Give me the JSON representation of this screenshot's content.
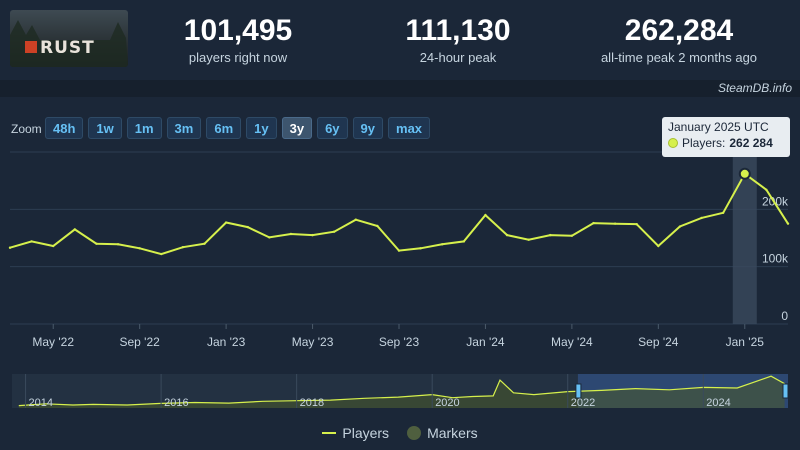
{
  "header": {
    "game_logo_text": "RUST",
    "stats": [
      {
        "value": "101,495",
        "label": "players right now"
      },
      {
        "value": "111,130",
        "label": "24-hour peak"
      },
      {
        "value": "262,284",
        "label": "all-time peak 2 months ago"
      }
    ],
    "credit": "SteamDB.info"
  },
  "zoom": {
    "label": "Zoom",
    "buttons": [
      "48h",
      "1w",
      "1m",
      "3m",
      "6m",
      "1y",
      "3y",
      "6y",
      "9y",
      "max"
    ],
    "active": "3y"
  },
  "tooltip": {
    "title": "January 2025 UTC",
    "series_label": "Players:",
    "value": "262 284"
  },
  "legend": {
    "players": "Players",
    "markers": "Markers"
  },
  "colors": {
    "line": "#d6f04c",
    "background": "#1b2738",
    "accent": "#66c0f4"
  },
  "chart_data": [
    {
      "type": "line",
      "y_ticks": [
        "0",
        "100k",
        "200k"
      ],
      "x_ticks": [
        "May '22",
        "Sep '22",
        "Jan '23",
        "May '23",
        "Sep '23",
        "Jan '24",
        "May '24",
        "Sep '24",
        "Jan '25"
      ],
      "ylim": [
        0,
        300000
      ],
      "series": [
        {
          "name": "Players",
          "x": [
            "2022-03",
            "2022-04",
            "2022-05",
            "2022-06",
            "2022-07",
            "2022-08",
            "2022-09",
            "2022-10",
            "2022-11",
            "2022-12",
            "2023-01",
            "2023-02",
            "2023-03",
            "2023-04",
            "2023-05",
            "2023-06",
            "2023-07",
            "2023-08",
            "2023-09",
            "2023-10",
            "2023-11",
            "2023-12",
            "2024-01",
            "2024-02",
            "2024-03",
            "2024-04",
            "2024-05",
            "2024-06",
            "2024-07",
            "2024-08",
            "2024-09",
            "2024-10",
            "2024-11",
            "2024-12",
            "2025-01",
            "2025-02",
            "2025-03"
          ],
          "values": [
            133000,
            144000,
            136000,
            165000,
            140000,
            139000,
            132000,
            122000,
            134000,
            140000,
            177000,
            169000,
            151000,
            157000,
            155000,
            161000,
            182000,
            171000,
            128000,
            132000,
            139000,
            144000,
            190000,
            155000,
            147000,
            155000,
            154000,
            176000,
            175000,
            174000,
            136000,
            170000,
            185000,
            194000,
            262000,
            234000,
            175000
          ]
        }
      ]
    },
    {
      "type": "area",
      "x_ticks": [
        "2014",
        "2016",
        "2018",
        "2020",
        "2022",
        "2024"
      ],
      "series": [
        {
          "name": "Players",
          "x": [
            2013.9,
            2014.3,
            2014.7,
            2015.0,
            2015.5,
            2016.0,
            2016.5,
            2017.0,
            2017.5,
            2018.0,
            2018.5,
            2019.0,
            2019.5,
            2020.0,
            2020.3,
            2020.6,
            2020.9,
            2021.0,
            2021.2,
            2021.5,
            2022.0,
            2022.5,
            2023.0,
            2023.5,
            2024.0,
            2024.5,
            2025.0,
            2025.2
          ],
          "values": [
            20000,
            35000,
            25000,
            30000,
            25000,
            38000,
            45000,
            40000,
            55000,
            60000,
            65000,
            80000,
            90000,
            110000,
            85000,
            95000,
            100000,
            230000,
            125000,
            110000,
            135000,
            145000,
            160000,
            150000,
            170000,
            165000,
            262000,
            200000
          ]
        }
      ]
    }
  ]
}
